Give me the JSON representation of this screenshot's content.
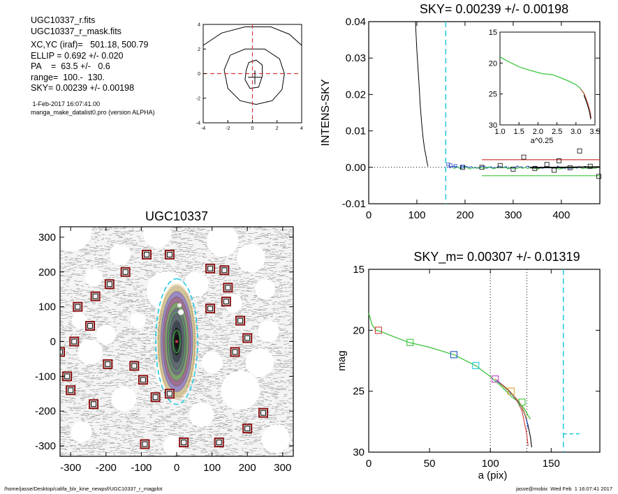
{
  "header": {
    "lines": [
      "UGC10337_r.fits",
      "UGC10337_r_mask.fits"
    ],
    "params": [
      "XC,YC (iraf)=   501.18, 500.79",
      "ELLIP = 0.692 +/- 0.020",
      "PA    =  63.5 +/-   0.6",
      "range=  100.-  130.",
      "SKY= 0.00239 +/- 0.00198"
    ],
    "date": " 1-Feb-2017 16:07:41.00",
    "program": "manga_make_datalist0.pro (version ALPHA)"
  },
  "footer": {
    "path": "/home/jasse/Desktop/califa_blx_kine_newpsf/UGC10337_r_magplot",
    "stamp": "jasse@mobix  Wed Feb  1 16:07:41 2017"
  },
  "colors": {
    "cyan": "#22c8e0",
    "red": "#d23a3a",
    "green": "#3cc43c",
    "blue": "#2850c8",
    "magenta": "#c040c0",
    "orange": "#e0a030",
    "darkred": "#8a1010"
  },
  "chart_data": [
    {
      "id": "contour",
      "type": "scatter",
      "title": "",
      "xlim": [
        -4,
        4
      ],
      "ylim": [
        -4,
        4
      ],
      "xticks": [
        -4,
        -2,
        0,
        2,
        4
      ],
      "yticks": [
        -4,
        -2,
        0,
        2,
        4
      ],
      "center": [
        0.2,
        -0.3
      ],
      "contours": [
        [
          [
            -0.5,
            0.3
          ],
          [
            -0.3,
            0.9
          ],
          [
            0.3,
            1.1
          ],
          [
            0.8,
            0.7
          ],
          [
            0.8,
            -0.2
          ],
          [
            0.5,
            -1.1
          ],
          [
            -0.2,
            -1.2
          ],
          [
            -0.6,
            -0.5
          ],
          [
            -0.5,
            0.3
          ]
        ],
        [
          [
            -2.3,
            0.3
          ],
          [
            -1.8,
            1.5
          ],
          [
            -0.6,
            2.0
          ],
          [
            1.0,
            2.0
          ],
          [
            2.2,
            1.2
          ],
          [
            2.6,
            0.0
          ],
          [
            2.4,
            -1.3
          ],
          [
            1.6,
            -2.2
          ],
          [
            0.3,
            -2.5
          ],
          [
            -1.0,
            -2.2
          ],
          [
            -2.0,
            -1.2
          ],
          [
            -2.3,
            0.3
          ]
        ],
        [
          [
            -4.0,
            2.3
          ],
          [
            -2.5,
            3.3
          ],
          [
            -0.6,
            3.8
          ],
          [
            1.5,
            3.8
          ],
          [
            3.0,
            3.2
          ],
          [
            4.0,
            2.3
          ]
        ]
      ],
      "label_x_tick_labels": [
        "-4",
        "-2",
        "0",
        "2",
        "4"
      ]
    },
    {
      "id": "sky",
      "type": "line",
      "title": "SKY= 0.00239 +/- 0.00198",
      "ylabel": "INTENS-SKY",
      "xlim": [
        0,
        480
      ],
      "ylim": [
        -0.01,
        0.04
      ],
      "xticks": [
        0,
        100,
        200,
        300,
        400
      ],
      "yticks": [
        -0.01,
        0.0,
        0.01,
        0.02,
        0.03,
        0.04
      ],
      "ytick_labels": [
        "-0.01",
        "0.00",
        "0.01",
        "0.02",
        "0.03",
        "0.04"
      ],
      "profile": {
        "x": [
          97,
          100,
          104,
          107,
          110,
          113,
          116,
          119,
          121,
          123
        ],
        "y": [
          0.04,
          0.032,
          0.024,
          0.017,
          0.012,
          0.008,
          0.005,
          0.003,
          0.0015,
          0.0003
        ]
      },
      "sky_cut_x": 160,
      "box_points": {
        "x": [
          195,
          235,
          273,
          300,
          322,
          345,
          370,
          385,
          395,
          418,
          438,
          460,
          478
        ],
        "y": [
          0.0,
          0.0,
          0.0005,
          -0.0005,
          0.0028,
          -0.0003,
          0.0008,
          -0.0008,
          0.0018,
          -0.0001,
          0.0045,
          0.0003,
          -0.0025
        ]
      },
      "blue_small": {
        "x": [
          165,
          170,
          180,
          195
        ],
        "y": [
          0.0008,
          0.0006,
          0.0004,
          0.0002
        ]
      },
      "sky_level": 0.00239,
      "sky_upper": 0.0021,
      "sky_lower": -0.0023,
      "inset": {
        "xlabel": "a^0.25",
        "xlim": [
          1.0,
          3.5
        ],
        "ylim": [
          15,
          30
        ],
        "xticks": [
          1.0,
          1.5,
          2.0,
          2.5,
          3.0,
          3.5
        ],
        "xtick_labels": [
          "1.0",
          "1.5",
          "2.0",
          "2.5",
          "3.0",
          "3.5"
        ],
        "yticks": [
          15,
          20,
          25,
          30
        ],
        "curve": {
          "x": [
            1.0,
            1.2,
            1.5,
            1.8,
            2.1,
            2.4,
            2.6,
            2.8,
            3.0,
            3.1,
            3.2,
            3.25,
            3.3,
            3.35,
            3.38
          ],
          "y": [
            19.0,
            19.7,
            20.6,
            21.2,
            21.7,
            21.9,
            22.4,
            22.9,
            23.5,
            24.0,
            24.8,
            25.6,
            26.5,
            27.6,
            28.7
          ]
        }
      }
    },
    {
      "id": "image",
      "type": "scatter",
      "title": "UGC10337",
      "xlim": [
        -330,
        330
      ],
      "ylim": [
        -330,
        330
      ],
      "xticks": [
        -300,
        -200,
        -100,
        0,
        100,
        200,
        300
      ],
      "yticks": [
        -300,
        -200,
        -100,
        0,
        100,
        200,
        300
      ],
      "center": [
        0,
        0
      ],
      "ellipse": {
        "a": 140,
        "ellip": 0.692,
        "pa": 63.5
      },
      "masks": [
        [
          -85,
          250
        ],
        [
          -20,
          250
        ],
        [
          95,
          210
        ],
        [
          135,
          205
        ],
        [
          -145,
          200
        ],
        [
          -190,
          165
        ],
        [
          145,
          155
        ],
        [
          -230,
          130
        ],
        [
          140,
          115
        ],
        [
          -280,
          100
        ],
        [
          95,
          95
        ],
        [
          -245,
          45
        ],
        [
          180,
          60
        ],
        [
          -290,
          0
        ],
        [
          200,
          10
        ],
        [
          -330,
          -30
        ],
        [
          165,
          -30
        ],
        [
          -195,
          -65
        ],
        [
          -120,
          -70
        ],
        [
          -95,
          -110
        ],
        [
          -310,
          -100
        ],
        [
          -300,
          -140
        ],
        [
          -60,
          -160
        ],
        [
          -20,
          -150
        ],
        [
          -235,
          -180
        ],
        [
          245,
          -205
        ],
        [
          200,
          -250
        ],
        [
          -90,
          -295
        ],
        [
          20,
          -290
        ],
        [
          120,
          -290
        ]
      ]
    },
    {
      "id": "magprofile",
      "type": "line",
      "title": "SKY_m=  0.00307 +/- 0.01319",
      "xlabel": "a (pix)",
      "ylabel": "mag",
      "xlim": [
        0,
        190
      ],
      "ylim": [
        15,
        30
      ],
      "xticks": [
        0,
        50,
        100,
        150
      ],
      "yticks": [
        15,
        20,
        25,
        30
      ],
      "vlines": [
        100,
        130
      ],
      "sky_cut_x": 160,
      "sky_mark": {
        "x": [
          160,
          175
        ],
        "y": 28.5
      },
      "curve": {
        "x": [
          0,
          3,
          6,
          10,
          20,
          33,
          50,
          70,
          88,
          100,
          108,
          113,
          118,
          122,
          126,
          129,
          131,
          133
        ],
        "y": [
          18.6,
          19.6,
          20.0,
          20.1,
          20.5,
          21.0,
          21.4,
          22.0,
          22.9,
          23.8,
          24.5,
          25.0,
          25.5,
          25.8,
          26.2,
          26.6,
          27.0,
          27.3
        ]
      },
      "markers": [
        {
          "x": 8,
          "y": 20.0,
          "color": "#d23a3a"
        },
        {
          "x": 34,
          "y": 21.0,
          "color": "#3cc43c"
        },
        {
          "x": 70,
          "y": 22.0,
          "color": "#2850c8"
        },
        {
          "x": 88,
          "y": 22.9,
          "color": "#22c8e0"
        },
        {
          "x": 104,
          "y": 24.0,
          "color": "#c040c0"
        },
        {
          "x": 117,
          "y": 25.0,
          "color": "#e0a030"
        },
        {
          "x": 126,
          "y": 25.9,
          "color": "#3cc43c"
        }
      ]
    }
  ]
}
